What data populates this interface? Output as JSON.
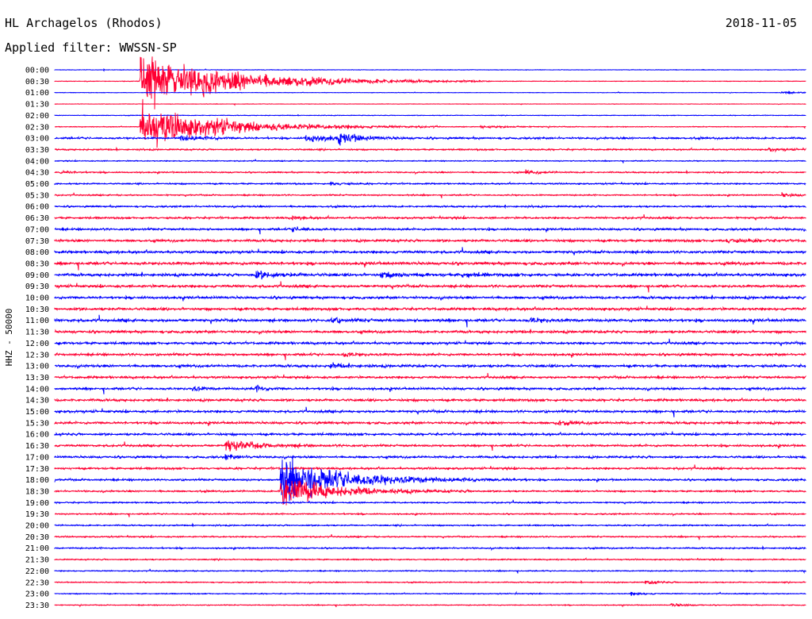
{
  "header": {
    "station": "HL Archagelos (Rhodos)",
    "date": "2018-11-05",
    "filter_prefix": "Applied filter: ",
    "filter_name": "WWSSN-SP"
  },
  "colors": {
    "trace_a": "#0000ff",
    "trace_b": "#ff0033",
    "text": "#000000",
    "background": "#ffffff"
  },
  "chart_data": {
    "type": "line",
    "title": "",
    "xlabel": "",
    "ylabel": "HHZ - 50000",
    "series_colors_alternate": [
      "#0000ff",
      "#ff0033"
    ],
    "row_labels": [
      "00:00",
      "00:30",
      "01:00",
      "01:30",
      "02:00",
      "02:30",
      "03:00",
      "03:30",
      "04:00",
      "04:30",
      "05:00",
      "05:30",
      "06:00",
      "06:30",
      "07:00",
      "07:30",
      "08:00",
      "08:30",
      "09:00",
      "09:30",
      "10:00",
      "10:30",
      "11:00",
      "11:30",
      "12:00",
      "12:30",
      "13:00",
      "13:30",
      "14:00",
      "14:30",
      "15:00",
      "15:30",
      "16:00",
      "16:30",
      "17:00",
      "17:30",
      "18:00",
      "18:30",
      "19:00",
      "19:30",
      "20:00",
      "20:30",
      "21:00",
      "21:30",
      "22:00",
      "22:30",
      "23:00",
      "23:30"
    ],
    "row_duration_minutes": 30,
    "background_noise": [
      0.1,
      0.1,
      0.08,
      0.08,
      0.12,
      0.14,
      0.4,
      0.3,
      0.2,
      0.28,
      0.3,
      0.28,
      0.35,
      0.4,
      0.45,
      0.5,
      0.55,
      0.62,
      0.6,
      0.55,
      0.55,
      0.55,
      0.62,
      0.55,
      0.5,
      0.5,
      0.55,
      0.48,
      0.5,
      0.5,
      0.52,
      0.5,
      0.48,
      0.45,
      0.45,
      0.42,
      0.4,
      0.35,
      0.3,
      0.28,
      0.28,
      0.28,
      0.3,
      0.25,
      0.22,
      0.22,
      0.2,
      0.18
    ],
    "events": [
      {
        "row": 1,
        "minute": 3.4,
        "amplitude": 12.0,
        "duration": 3.5
      },
      {
        "row": 5,
        "minute": 3.4,
        "amplitude": 9.0,
        "duration": 3.0
      },
      {
        "row": 6,
        "minute": 5.0,
        "amplitude": 1.4,
        "duration": 0.8
      },
      {
        "row": 6,
        "minute": 10.0,
        "amplitude": 1.8,
        "duration": 1.0
      },
      {
        "row": 6,
        "minute": 11.3,
        "amplitude": 2.0,
        "duration": 1.0
      },
      {
        "row": 2,
        "minute": 29.0,
        "amplitude": 0.6,
        "duration": 0.6
      },
      {
        "row": 5,
        "minute": 17.0,
        "amplitude": 0.6,
        "duration": 1.2
      },
      {
        "row": 7,
        "minute": 28.5,
        "amplitude": 0.8,
        "duration": 0.5
      },
      {
        "row": 9,
        "minute": 0.2,
        "amplitude": 0.8,
        "duration": 0.4
      },
      {
        "row": 9,
        "minute": 18.8,
        "amplitude": 0.9,
        "duration": 0.5
      },
      {
        "row": 10,
        "minute": 11.0,
        "amplitude": 0.8,
        "duration": 0.5
      },
      {
        "row": 11,
        "minute": 29.0,
        "amplitude": 0.9,
        "duration": 0.5
      },
      {
        "row": 13,
        "minute": 9.5,
        "amplitude": 1.0,
        "duration": 0.4
      },
      {
        "row": 14,
        "minute": 9.5,
        "amplitude": 1.2,
        "duration": 0.4
      },
      {
        "row": 15,
        "minute": 26.8,
        "amplitude": 1.0,
        "duration": 0.8
      },
      {
        "row": 18,
        "minute": 8.0,
        "amplitude": 1.5,
        "duration": 0.8
      },
      {
        "row": 18,
        "minute": 13.0,
        "amplitude": 1.2,
        "duration": 1.0
      },
      {
        "row": 18,
        "minute": 16.2,
        "amplitude": 1.0,
        "duration": 0.8
      },
      {
        "row": 22,
        "minute": 11.0,
        "amplitude": 1.3,
        "duration": 0.5
      },
      {
        "row": 22,
        "minute": 19.0,
        "amplitude": 1.0,
        "duration": 0.5
      },
      {
        "row": 25,
        "minute": 11.5,
        "amplitude": 1.0,
        "duration": 0.5
      },
      {
        "row": 26,
        "minute": 11.0,
        "amplitude": 1.0,
        "duration": 0.5
      },
      {
        "row": 28,
        "minute": 5.5,
        "amplitude": 1.0,
        "duration": 0.4
      },
      {
        "row": 28,
        "minute": 8.0,
        "amplitude": 1.2,
        "duration": 0.4
      },
      {
        "row": 31,
        "minute": 20.0,
        "amplitude": 1.0,
        "duration": 0.6
      },
      {
        "row": 33,
        "minute": 6.8,
        "amplitude": 2.5,
        "duration": 1.3
      },
      {
        "row": 34,
        "minute": 6.8,
        "amplitude": 1.0,
        "duration": 0.6
      },
      {
        "row": 36,
        "minute": 9.0,
        "amplitude": 9.0,
        "duration": 2.5
      },
      {
        "row": 37,
        "minute": 9.0,
        "amplitude": 7.0,
        "duration": 2.0
      },
      {
        "row": 45,
        "minute": 23.6,
        "amplitude": 0.8,
        "duration": 0.5
      },
      {
        "row": 46,
        "minute": 23.0,
        "amplitude": 0.7,
        "duration": 0.5
      },
      {
        "row": 47,
        "minute": 24.6,
        "amplitude": 0.8,
        "duration": 0.5
      }
    ]
  }
}
